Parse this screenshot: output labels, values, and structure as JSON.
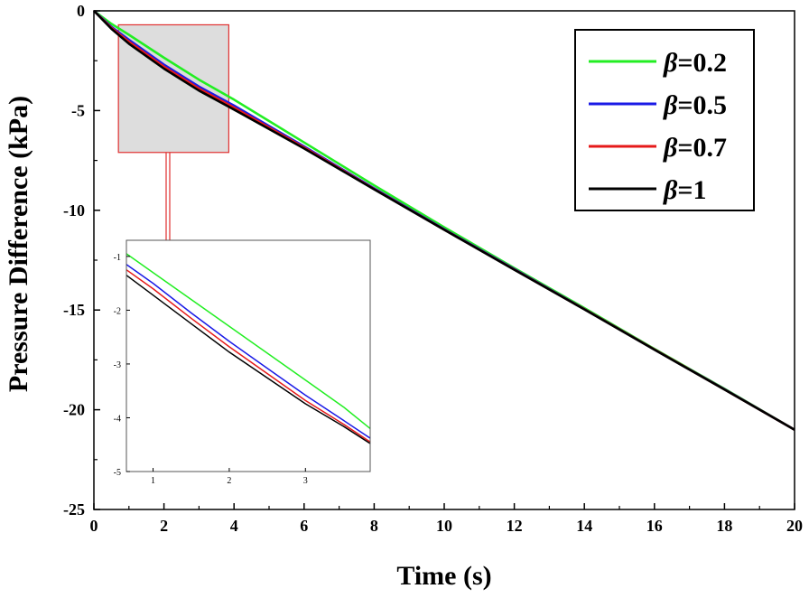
{
  "chart_data": [
    {
      "type": "line",
      "xlabel": "Time (s)",
      "ylabel": "Pressure Difference (kPa)",
      "xlim": [
        0,
        20
      ],
      "ylim": [
        -25,
        0
      ],
      "x_ticks": [
        "0",
        "2",
        "4",
        "6",
        "8",
        "10",
        "12",
        "14",
        "16",
        "18",
        "20"
      ],
      "y_ticks": [
        "0",
        "-5",
        "-10",
        "-15",
        "-20",
        "-25"
      ],
      "grid": false,
      "legend_position": "top-right",
      "series": [
        {
          "name": "β=0.2",
          "color": "#22ee22",
          "x": [
            0,
            0.5,
            1,
            2,
            3,
            4,
            6,
            8,
            10,
            12,
            14,
            16,
            18,
            20
          ],
          "y": [
            0,
            -0.65,
            -1.2,
            -2.35,
            -3.45,
            -4.45,
            -6.6,
            -8.75,
            -10.85,
            -12.9,
            -14.9,
            -16.95,
            -18.95,
            -21.0
          ]
        },
        {
          "name": "β=0.5",
          "color": "#1a1ae6",
          "x": [
            0,
            0.5,
            1,
            2,
            3,
            4,
            6,
            8,
            10,
            12,
            14,
            16,
            18,
            20
          ],
          "y": [
            0,
            -0.8,
            -1.45,
            -2.7,
            -3.8,
            -4.75,
            -6.8,
            -8.9,
            -10.95,
            -12.95,
            -14.95,
            -16.98,
            -18.97,
            -21.0
          ]
        },
        {
          "name": "β=0.7",
          "color": "#e61a1a",
          "x": [
            0,
            0.5,
            1,
            2,
            3,
            4,
            6,
            8,
            10,
            12,
            14,
            16,
            18,
            20
          ],
          "y": [
            0,
            -0.85,
            -1.55,
            -2.8,
            -3.9,
            -4.85,
            -6.85,
            -8.93,
            -10.97,
            -12.97,
            -14.96,
            -16.98,
            -18.98,
            -21.0
          ]
        },
        {
          "name": "β=1",
          "color": "#000000",
          "x": [
            0,
            0.5,
            1,
            2,
            3,
            4,
            6,
            8,
            10,
            12,
            14,
            16,
            18,
            20
          ],
          "y": [
            0,
            -0.9,
            -1.65,
            -2.9,
            -4.0,
            -4.95,
            -6.9,
            -8.95,
            -10.98,
            -12.98,
            -14.97,
            -16.99,
            -18.99,
            -21.0
          ]
        }
      ]
    },
    {
      "type": "line",
      "xlim": [
        0.65,
        3.85
      ],
      "ylim": [
        -5,
        -0.7
      ],
      "x_ticks": [
        "1",
        "2",
        "3"
      ],
      "y_ticks": [
        "-1",
        "-2",
        "-3",
        "-4",
        "-5"
      ],
      "grid": false,
      "series": [
        {
          "name": "β=0.2",
          "color": "#22ee22",
          "x": [
            0.65,
            1.0,
            1.5,
            2.0,
            2.5,
            3.0,
            3.5,
            3.85
          ],
          "y": [
            -0.95,
            -1.3,
            -1.8,
            -2.3,
            -2.8,
            -3.3,
            -3.8,
            -4.2
          ]
        },
        {
          "name": "β=0.5",
          "color": "#1a1ae6",
          "x": [
            0.65,
            1.0,
            1.5,
            2.0,
            2.5,
            3.0,
            3.5,
            3.85
          ],
          "y": [
            -1.15,
            -1.5,
            -2.05,
            -2.58,
            -3.08,
            -3.58,
            -4.05,
            -4.38
          ]
        },
        {
          "name": "β=0.7",
          "color": "#e61a1a",
          "x": [
            0.65,
            1.0,
            1.5,
            2.0,
            2.5,
            3.0,
            3.5,
            3.85
          ],
          "y": [
            -1.25,
            -1.6,
            -2.15,
            -2.68,
            -3.18,
            -3.68,
            -4.12,
            -4.45
          ]
        },
        {
          "name": "β=1",
          "color": "#000000",
          "x": [
            0.65,
            1.0,
            1.5,
            2.0,
            2.5,
            3.0,
            3.5,
            3.85
          ],
          "y": [
            -1.35,
            -1.72,
            -2.25,
            -2.78,
            -3.26,
            -3.74,
            -4.16,
            -4.48
          ]
        }
      ]
    }
  ],
  "zoom_highlight": {
    "x_range": [
      0.7,
      3.85
    ],
    "y_range": [
      -7.1,
      -0.7
    ],
    "fill": "#dddddd",
    "border": "#e03030"
  },
  "legend": {
    "symbol": "β",
    "items": [
      {
        "value": "=0.2",
        "color": "#22ee22"
      },
      {
        "value": "=0.5",
        "color": "#1a1ae6"
      },
      {
        "value": "=0.7",
        "color": "#e61a1a"
      },
      {
        "value": "=1",
        "color": "#000000"
      }
    ]
  }
}
